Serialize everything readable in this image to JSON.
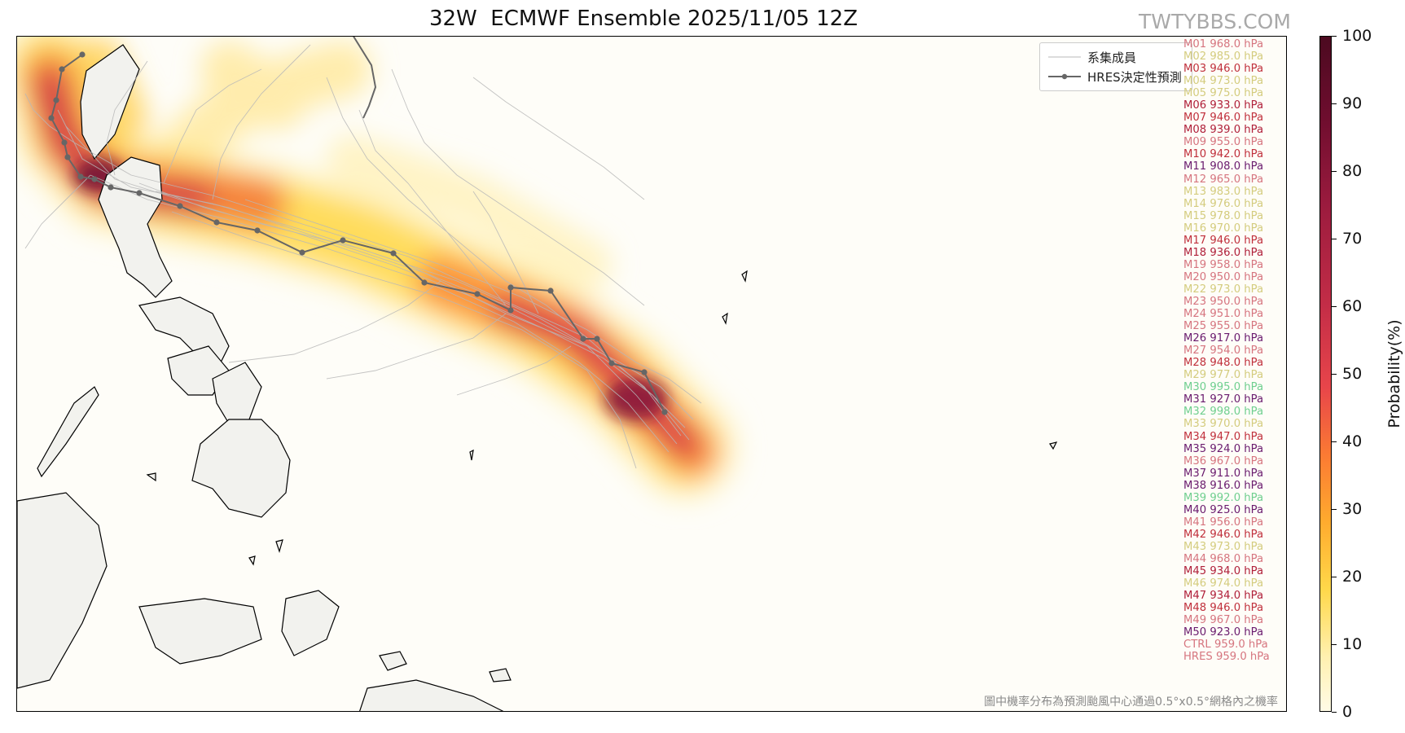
{
  "title": "32W  ECMWF Ensemble 2025/11/05 12Z",
  "watermark": "TWTYBBS.COM",
  "legend": {
    "ensemble_label": "系集成員",
    "hres_label": "HRES決定性預測"
  },
  "members": [
    {
      "label": "M01 968.0 hPa",
      "color": "#d6757f"
    },
    {
      "label": "M02 985.0 hPa",
      "color": "#d4cc7e"
    },
    {
      "label": "M03 946.0 hPa",
      "color": "#c0303c"
    },
    {
      "label": "M04 973.0 hPa",
      "color": "#d4cc7e"
    },
    {
      "label": "M05 975.0 hPa",
      "color": "#d4cc7e"
    },
    {
      "label": "M06 933.0 hPa",
      "color": "#b0203a"
    },
    {
      "label": "M07 946.0 hPa",
      "color": "#c0303c"
    },
    {
      "label": "M08 939.0 hPa",
      "color": "#b0203a"
    },
    {
      "label": "M09 955.0 hPa",
      "color": "#d6757f"
    },
    {
      "label": "M10 942.0 hPa",
      "color": "#c0303c"
    },
    {
      "label": "M11 908.0 hPa",
      "color": "#6a1b6e"
    },
    {
      "label": "M12 965.0 hPa",
      "color": "#d6757f"
    },
    {
      "label": "M13 983.0 hPa",
      "color": "#d4cc7e"
    },
    {
      "label": "M14 976.0 hPa",
      "color": "#d4cc7e"
    },
    {
      "label": "M15 978.0 hPa",
      "color": "#d4cc7e"
    },
    {
      "label": "M16 970.0 hPa",
      "color": "#d4cc7e"
    },
    {
      "label": "M17 946.0 hPa",
      "color": "#c0303c"
    },
    {
      "label": "M18 936.0 hPa",
      "color": "#b0203a"
    },
    {
      "label": "M19 958.0 hPa",
      "color": "#d6757f"
    },
    {
      "label": "M20 950.0 hPa",
      "color": "#d6757f"
    },
    {
      "label": "M22 973.0 hPa",
      "color": "#d4cc7e"
    },
    {
      "label": "M23 950.0 hPa",
      "color": "#d6757f"
    },
    {
      "label": "M24 951.0 hPa",
      "color": "#d6757f"
    },
    {
      "label": "M25 955.0 hPa",
      "color": "#d6757f"
    },
    {
      "label": "M26 917.0 hPa",
      "color": "#6a1b6e"
    },
    {
      "label": "M27 954.0 hPa",
      "color": "#d6757f"
    },
    {
      "label": "M28 948.0 hPa",
      "color": "#c0303c"
    },
    {
      "label": "M29 977.0 hPa",
      "color": "#d4cc7e"
    },
    {
      "label": "M30 995.0 hPa",
      "color": "#6fcf8f"
    },
    {
      "label": "M31 927.0 hPa",
      "color": "#6a1b6e"
    },
    {
      "label": "M32 998.0 hPa",
      "color": "#6fcf8f"
    },
    {
      "label": "M33 970.0 hPa",
      "color": "#d4cc7e"
    },
    {
      "label": "M34 947.0 hPa",
      "color": "#c0303c"
    },
    {
      "label": "M35 924.0 hPa",
      "color": "#6a1b6e"
    },
    {
      "label": "M36 967.0 hPa",
      "color": "#d6757f"
    },
    {
      "label": "M37 911.0 hPa",
      "color": "#6a1b6e"
    },
    {
      "label": "M38 916.0 hPa",
      "color": "#6a1b6e"
    },
    {
      "label": "M39 992.0 hPa",
      "color": "#6fcf8f"
    },
    {
      "label": "M40 925.0 hPa",
      "color": "#6a1b6e"
    },
    {
      "label": "M41 956.0 hPa",
      "color": "#d6757f"
    },
    {
      "label": "M42 946.0 hPa",
      "color": "#c0303c"
    },
    {
      "label": "M43 973.0 hPa",
      "color": "#d4cc7e"
    },
    {
      "label": "M44 968.0 hPa",
      "color": "#d6757f"
    },
    {
      "label": "M45 934.0 hPa",
      "color": "#b0203a"
    },
    {
      "label": "M46 974.0 hPa",
      "color": "#d4cc7e"
    },
    {
      "label": "M47 934.0 hPa",
      "color": "#b0203a"
    },
    {
      "label": "M48 946.0 hPa",
      "color": "#c0303c"
    },
    {
      "label": "M49 967.0 hPa",
      "color": "#d6757f"
    },
    {
      "label": "M50 923.0 hPa",
      "color": "#6a1b6e"
    },
    {
      "label": "CTRL 959.0 hPa",
      "color": "#d6757f"
    },
    {
      "label": "HRES 959.0 hPa",
      "color": "#d6757f"
    }
  ],
  "footnote": "圖中機率分布為預測颱風中心通過0.5°x0.5°網格內之機率",
  "colorbar": {
    "title": "Probability(%)",
    "ticks": [
      "0",
      "10",
      "20",
      "30",
      "40",
      "50",
      "60",
      "70",
      "80",
      "90",
      "100"
    ]
  },
  "colors": {
    "hres_track": "#666666",
    "ensemble_track": "#b8b8b8",
    "land_fill": "#f2f2ee",
    "ocean_fill": "#fefdf8"
  }
}
